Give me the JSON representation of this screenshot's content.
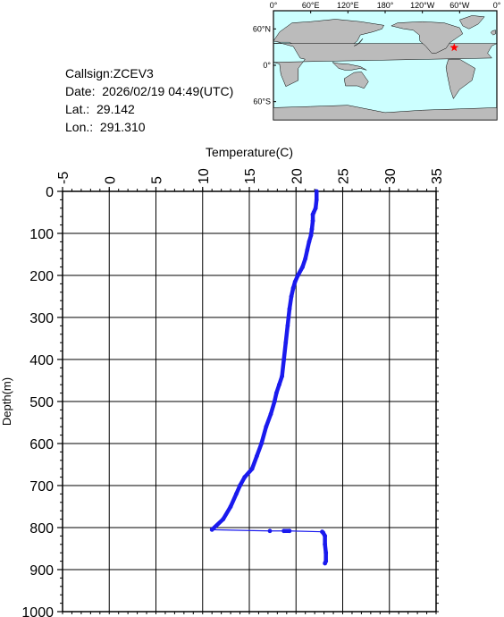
{
  "info": {
    "callsign": "Callsign:ZCEV3",
    "date": "Date:  2026/02/19 04:49(UTC)",
    "lat": "Lat.:  29.142",
    "lon": "Lon.:  291.310"
  },
  "map": {
    "lon_labels": [
      "0°",
      "60°E",
      "120°E",
      "180°",
      "120°W",
      "60°W",
      "0°"
    ],
    "lat_labels": [
      "60°N",
      "0°",
      "60°S"
    ],
    "ocean_color": "#ccffff",
    "land_color": "#bbbbbb",
    "marker_color": "#ff0000",
    "marker_lon_east": 291.31,
    "marker_lat": 29.142
  },
  "chart_data": {
    "type": "line",
    "xlabel": "Temperature(C)",
    "ylabel": "Depth(m)",
    "xlim": [
      -5,
      35
    ],
    "ylim": [
      0,
      1000
    ],
    "y_inverted": true,
    "x_ticks": [
      "-5",
      "0",
      "5",
      "10",
      "15",
      "20",
      "25",
      "30",
      "35"
    ],
    "y_ticks": [
      "0",
      "100",
      "200",
      "300",
      "400",
      "500",
      "600",
      "700",
      "800",
      "900",
      "1000"
    ],
    "grid": true,
    "line_color": "#1a1aee",
    "series": [
      {
        "points": [
          [
            22.2,
            0
          ],
          [
            22.2,
            20
          ],
          [
            22.1,
            40
          ],
          [
            21.9,
            50
          ],
          [
            21.8,
            55
          ],
          [
            21.8,
            70
          ],
          [
            21.7,
            90
          ],
          [
            21.6,
            105
          ],
          [
            21.4,
            120
          ],
          [
            21.2,
            140
          ],
          [
            21.0,
            160
          ],
          [
            20.7,
            180
          ],
          [
            20.2,
            200
          ],
          [
            19.9,
            215
          ],
          [
            19.7,
            230
          ],
          [
            19.5,
            250
          ],
          [
            19.3,
            280
          ],
          [
            19.1,
            320
          ],
          [
            18.9,
            360
          ],
          [
            18.7,
            400
          ],
          [
            18.5,
            440
          ],
          [
            18.2,
            460
          ],
          [
            17.9,
            480
          ],
          [
            17.7,
            500
          ],
          [
            17.3,
            530
          ],
          [
            16.8,
            560
          ],
          [
            16.3,
            600
          ],
          [
            15.8,
            630
          ],
          [
            15.3,
            660
          ],
          [
            14.5,
            680
          ],
          [
            14.0,
            700
          ],
          [
            13.6,
            720
          ],
          [
            13.0,
            750
          ],
          [
            12.2,
            780
          ],
          [
            11.0,
            805
          ],
          [
            17.2,
            808
          ],
          [
            18.7,
            808
          ],
          [
            19.3,
            808
          ],
          [
            22.8,
            810
          ],
          [
            22.9,
            812
          ],
          [
            23.1,
            820
          ],
          [
            23.1,
            840
          ],
          [
            23.2,
            860
          ],
          [
            23.2,
            880
          ],
          [
            23.1,
            885
          ]
        ]
      }
    ]
  }
}
